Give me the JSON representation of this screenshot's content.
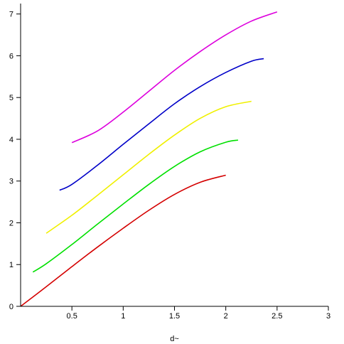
{
  "chart_data": {
    "type": "line",
    "title": "",
    "xlabel": "d~",
    "ylabel": "",
    "xlim": [
      0,
      3
    ],
    "ylim": [
      0,
      7.25
    ],
    "x_ticks": [
      0.5,
      1,
      1.5,
      2,
      2.5,
      3
    ],
    "x_tick_labels": [
      "0.5",
      "1",
      "1.5",
      "2",
      "2.5",
      "3"
    ],
    "y_ticks": [
      0,
      1,
      2,
      3,
      4,
      5,
      6,
      7
    ],
    "y_tick_labels": [
      "0",
      "1",
      "2",
      "3",
      "4",
      "5",
      "6",
      "7"
    ],
    "grid": false,
    "legend": "none",
    "series": [
      {
        "color": "#d40000",
        "x": [
          0.0,
          0.25,
          0.5,
          0.75,
          1.0,
          1.25,
          1.5,
          1.75,
          2.0
        ],
        "y": [
          0.0,
          0.47,
          0.95,
          1.42,
          1.87,
          2.3,
          2.68,
          2.97,
          3.14
        ]
      },
      {
        "color": "#00e000",
        "x": [
          0.12,
          0.25,
          0.5,
          0.75,
          1.0,
          1.25,
          1.5,
          1.75,
          2.0,
          2.12
        ],
        "y": [
          0.82,
          1.02,
          1.48,
          1.97,
          2.45,
          2.92,
          3.35,
          3.7,
          3.93,
          3.98
        ]
      },
      {
        "color": "#f0f000",
        "x": [
          0.25,
          0.5,
          0.75,
          1.0,
          1.25,
          1.5,
          1.75,
          2.0,
          2.25
        ],
        "y": [
          1.75,
          2.18,
          2.66,
          3.15,
          3.64,
          4.1,
          4.5,
          4.78,
          4.91
        ]
      },
      {
        "color": "#0000c8",
        "x": [
          0.38,
          0.5,
          0.75,
          1.0,
          1.25,
          1.5,
          1.75,
          2.0,
          2.25,
          2.37
        ],
        "y": [
          2.78,
          2.92,
          3.38,
          3.88,
          4.37,
          4.85,
          5.26,
          5.6,
          5.87,
          5.93
        ]
      },
      {
        "color": "#dd00dd",
        "x": [
          0.5,
          0.75,
          1.0,
          1.25,
          1.5,
          1.75,
          2.0,
          2.25,
          2.5
        ],
        "y": [
          3.92,
          4.2,
          4.65,
          5.15,
          5.65,
          6.1,
          6.5,
          6.83,
          7.05
        ]
      }
    ]
  }
}
